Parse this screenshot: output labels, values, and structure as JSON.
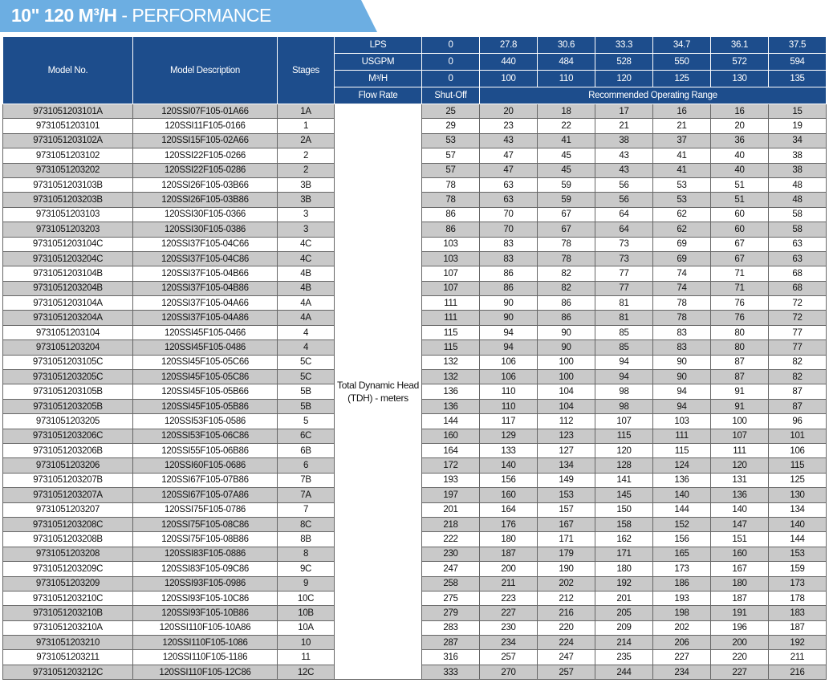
{
  "header": {
    "title_bold": "10\" 120 M³/H",
    "title_rest": "- PERFORMANCE"
  },
  "table": {
    "col_headers": [
      "Model No.",
      "Model Description",
      "Stages"
    ],
    "flow_rows": [
      {
        "label": "LPS",
        "values": [
          0,
          27.8,
          30.6,
          33.3,
          34.7,
          36.1,
          37.5
        ]
      },
      {
        "label": "USGPM",
        "values": [
          0,
          440,
          484,
          528,
          550,
          572,
          594
        ]
      },
      {
        "label": "M³/H",
        "values": [
          0,
          100,
          110,
          120,
          125,
          130,
          135
        ]
      }
    ],
    "flow_rate_label": "Flow Rate",
    "shutoff_label": "Shut-Off",
    "range_label": "Recommended Operating Range",
    "tdh_label": "Total Dynamic Head (TDH) - meters",
    "rows": [
      [
        "9731051203101A",
        "120SSI07F105-01A66",
        "1A",
        25,
        20,
        18,
        17,
        16,
        16,
        15
      ],
      [
        "9731051203101",
        "120SSI11F105-0166",
        "1",
        29,
        23,
        22,
        21,
        21,
        20,
        19
      ],
      [
        "9731051203102A",
        "120SSI15F105-02A66",
        "2A",
        53,
        43,
        41,
        38,
        37,
        36,
        34
      ],
      [
        "9731051203102",
        "120SSI22F105-0266",
        "2",
        57,
        47,
        45,
        43,
        41,
        40,
        38
      ],
      [
        "9731051203202",
        "120SSI22F105-0286",
        "2",
        57,
        47,
        45,
        43,
        41,
        40,
        38
      ],
      [
        "9731051203103B",
        "120SSI26F105-03B66",
        "3B",
        78,
        63,
        59,
        56,
        53,
        51,
        48
      ],
      [
        "9731051203203B",
        "120SSI26F105-03B86",
        "3B",
        78,
        63,
        59,
        56,
        53,
        51,
        48
      ],
      [
        "9731051203103",
        "120SSI30F105-0366",
        "3",
        86,
        70,
        67,
        64,
        62,
        60,
        58
      ],
      [
        "9731051203203",
        "120SSI30F105-0386",
        "3",
        86,
        70,
        67,
        64,
        62,
        60,
        58
      ],
      [
        "9731051203104C",
        "120SSI37F105-04C66",
        "4C",
        103,
        83,
        78,
        73,
        69,
        67,
        63
      ],
      [
        "9731051203204C",
        "120SSI37F105-04C86",
        "4C",
        103,
        83,
        78,
        73,
        69,
        67,
        63
      ],
      [
        "9731051203104B",
        "120SSI37F105-04B66",
        "4B",
        107,
        86,
        82,
        77,
        74,
        71,
        68
      ],
      [
        "9731051203204B",
        "120SSI37F105-04B86",
        "4B",
        107,
        86,
        82,
        77,
        74,
        71,
        68
      ],
      [
        "9731051203104A",
        "120SSI37F105-04A66",
        "4A",
        111,
        90,
        86,
        81,
        78,
        76,
        72
      ],
      [
        "9731051203204A",
        "120SSI37F105-04A86",
        "4A",
        111,
        90,
        86,
        81,
        78,
        76,
        72
      ],
      [
        "9731051203104",
        "120SSI45F105-0466",
        "4",
        115,
        94,
        90,
        85,
        83,
        80,
        77
      ],
      [
        "9731051203204",
        "120SSI45F105-0486",
        "4",
        115,
        94,
        90,
        85,
        83,
        80,
        77
      ],
      [
        "9731051203105C",
        "120SSI45F105-05C66",
        "5C",
        132,
        106,
        100,
        94,
        90,
        87,
        82
      ],
      [
        "9731051203205C",
        "120SSI45F105-05C86",
        "5C",
        132,
        106,
        100,
        94,
        90,
        87,
        82
      ],
      [
        "9731051203105B",
        "120SSI45F105-05B66",
        "5B",
        136,
        110,
        104,
        98,
        94,
        91,
        87
      ],
      [
        "9731051203205B",
        "120SSI45F105-05B86",
        "5B",
        136,
        110,
        104,
        98,
        94,
        91,
        87
      ],
      [
        "9731051203205",
        "120SSI53F105-0586",
        "5",
        144,
        117,
        112,
        107,
        103,
        100,
        96
      ],
      [
        "9731051203206C",
        "120SSI53F105-06C86",
        "6C",
        160,
        129,
        123,
        115,
        111,
        107,
        101
      ],
      [
        "9731051203206B",
        "120SSI55F105-06B86",
        "6B",
        164,
        133,
        127,
        120,
        115,
        111,
        106
      ],
      [
        "9731051203206",
        "120SSI60F105-0686",
        "6",
        172,
        140,
        134,
        128,
        124,
        120,
        115
      ],
      [
        "9731051203207B",
        "120SSI67F105-07B86",
        "7B",
        193,
        156,
        149,
        141,
        136,
        131,
        125
      ],
      [
        "9731051203207A",
        "120SSI67F105-07A86",
        "7A",
        197,
        160,
        153,
        145,
        140,
        136,
        130
      ],
      [
        "9731051203207",
        "120SSI75F105-0786",
        "7",
        201,
        164,
        157,
        150,
        144,
        140,
        134
      ],
      [
        "9731051203208C",
        "120SSI75F105-08C86",
        "8C",
        218,
        176,
        167,
        158,
        152,
        147,
        140
      ],
      [
        "9731051203208B",
        "120SSI75F105-08B86",
        "8B",
        222,
        180,
        171,
        162,
        156,
        151,
        144
      ],
      [
        "9731051203208",
        "120SSI83F105-0886",
        "8",
        230,
        187,
        179,
        171,
        165,
        160,
        153
      ],
      [
        "9731051203209C",
        "120SSI83F105-09C86",
        "9C",
        247,
        200,
        190,
        180,
        173,
        167,
        159
      ],
      [
        "9731051203209",
        "120SSI93F105-0986",
        "9",
        258,
        211,
        202,
        192,
        186,
        180,
        173
      ],
      [
        "9731051203210C",
        "120SSI93F105-10C86",
        "10C",
        275,
        223,
        212,
        201,
        193,
        187,
        178
      ],
      [
        "9731051203210B",
        "120SSI93F105-10B86",
        "10B",
        279,
        227,
        216,
        205,
        198,
        191,
        183
      ],
      [
        "9731051203210A",
        "120SSI110F105-10A86",
        "10A",
        283,
        230,
        220,
        209,
        202,
        196,
        187
      ],
      [
        "9731051203210",
        "120SSI110F105-1086",
        "10",
        287,
        234,
        224,
        214,
        206,
        200,
        192
      ],
      [
        "9731051203211",
        "120SSI110F105-1186",
        "11",
        316,
        257,
        247,
        235,
        227,
        220,
        211
      ],
      [
        "9731051203212C",
        "120SSI110F105-12C86",
        "12C",
        333,
        270,
        257,
        244,
        234,
        227,
        216
      ]
    ]
  }
}
